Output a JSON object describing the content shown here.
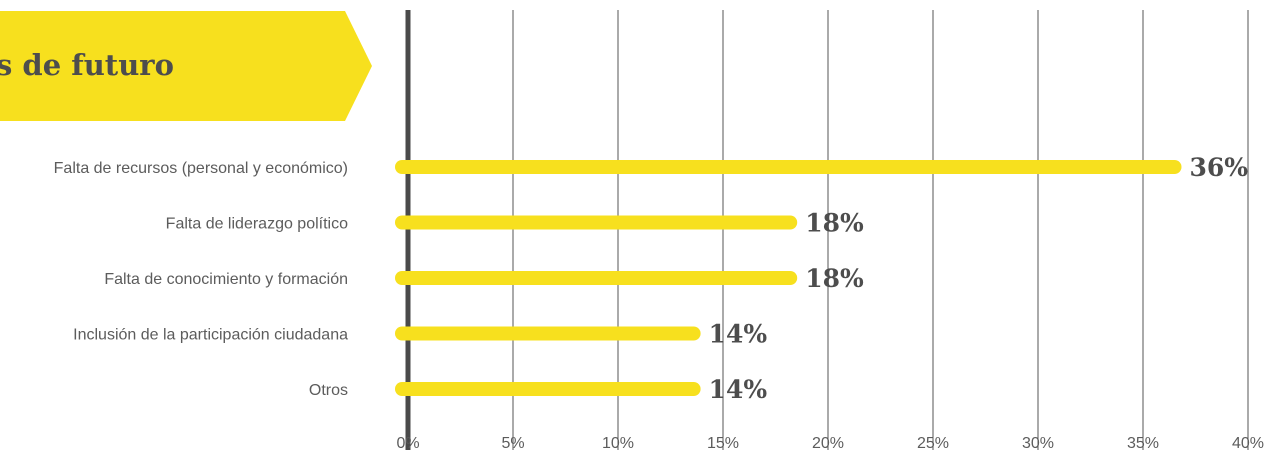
{
  "title": "s de futuro",
  "chart_data": {
    "type": "bar",
    "orientation": "horizontal",
    "title": "s de futuro",
    "categories": [
      "Falta de recursos (personal y económico)",
      "Falta de liderazgo político",
      "Falta de conocimiento y formación",
      "Inclusión de la participación ciudadana",
      "Otros"
    ],
    "values": [
      36.5,
      18.2,
      18.2,
      13.6,
      13.6
    ],
    "data_labels": [
      "36%",
      "18%",
      "18%",
      "14%",
      "14%"
    ],
    "xlim": [
      0,
      40
    ],
    "xticks": [
      0,
      5,
      10,
      15,
      20,
      25,
      30,
      35,
      40
    ],
    "xtick_labels": [
      "0%",
      "5%",
      "10%",
      "15%",
      "20%",
      "25%",
      "30%",
      "35%",
      "40%"
    ],
    "xlabel": "",
    "ylabel": "",
    "grid": true,
    "legend": "none"
  },
  "colors": {
    "bar": "#f7e01e",
    "banner": "#f7e01e",
    "grid": "#555555",
    "axis": "#4a4a4a",
    "text": "#4d4d4d"
  }
}
